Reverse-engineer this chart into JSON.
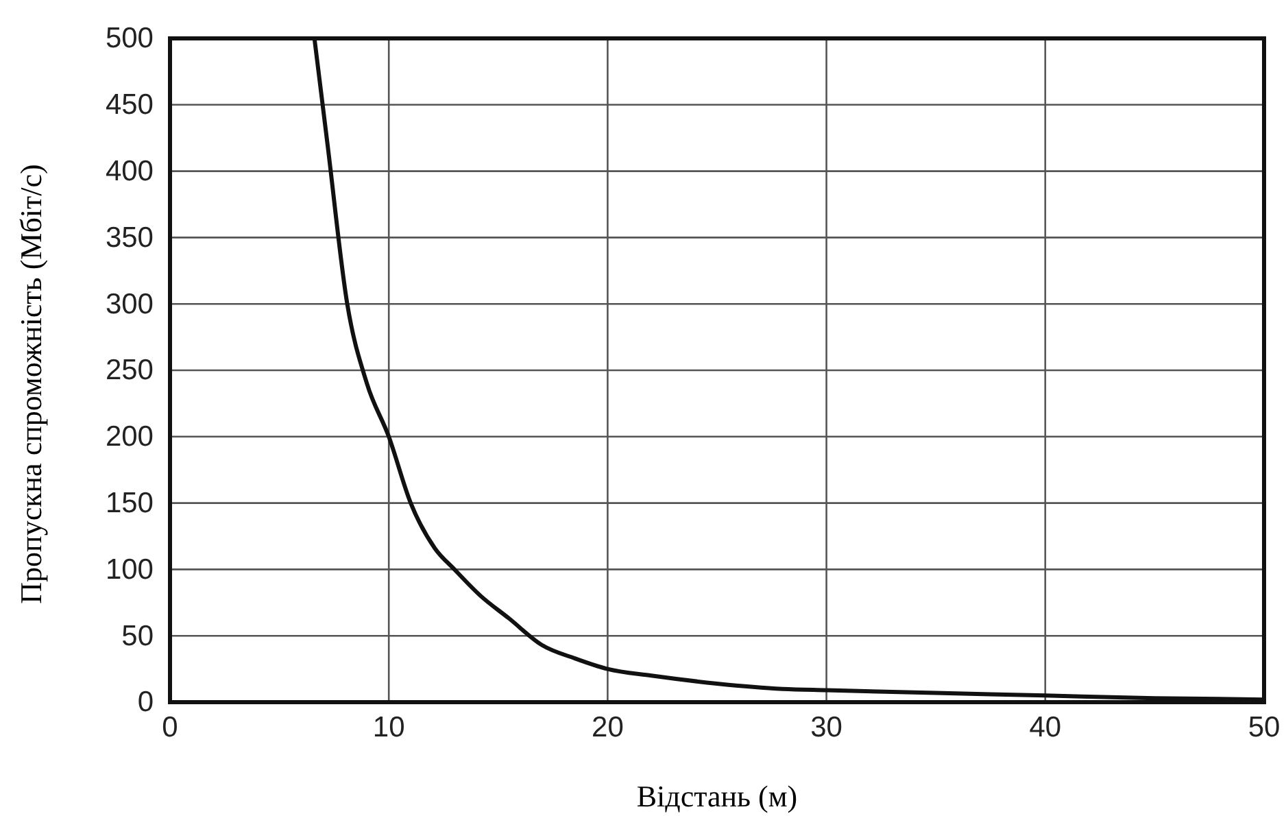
{
  "chart_data": {
    "type": "line",
    "xlabel": "Відстань (м)",
    "ylabel": "Пропускна спроможність (Мбіт/с)",
    "x": [
      6.6,
      7.2,
      8.1,
      9,
      10,
      11,
      12.1,
      13,
      14.2,
      15.5,
      17,
      18.5,
      20,
      22,
      25,
      28,
      30,
      35,
      40,
      45,
      50
    ],
    "series": [
      {
        "color": "#111111",
        "values": [
          500,
          420,
          300,
          240,
          200,
          150,
          116,
          100,
          80,
          63,
          43,
          33,
          25,
          20,
          14,
          10,
          9,
          7,
          5,
          3,
          2
        ]
      }
    ],
    "xlim": [
      0,
      50
    ],
    "xticks": [
      0,
      10,
      20,
      30,
      40,
      50
    ],
    "ylim": [
      0,
      500
    ],
    "yticks": [
      0,
      50,
      100,
      150,
      200,
      250,
      300,
      350,
      400,
      450,
      500
    ],
    "grid": true,
    "marker": "none",
    "line_style": "solid"
  }
}
